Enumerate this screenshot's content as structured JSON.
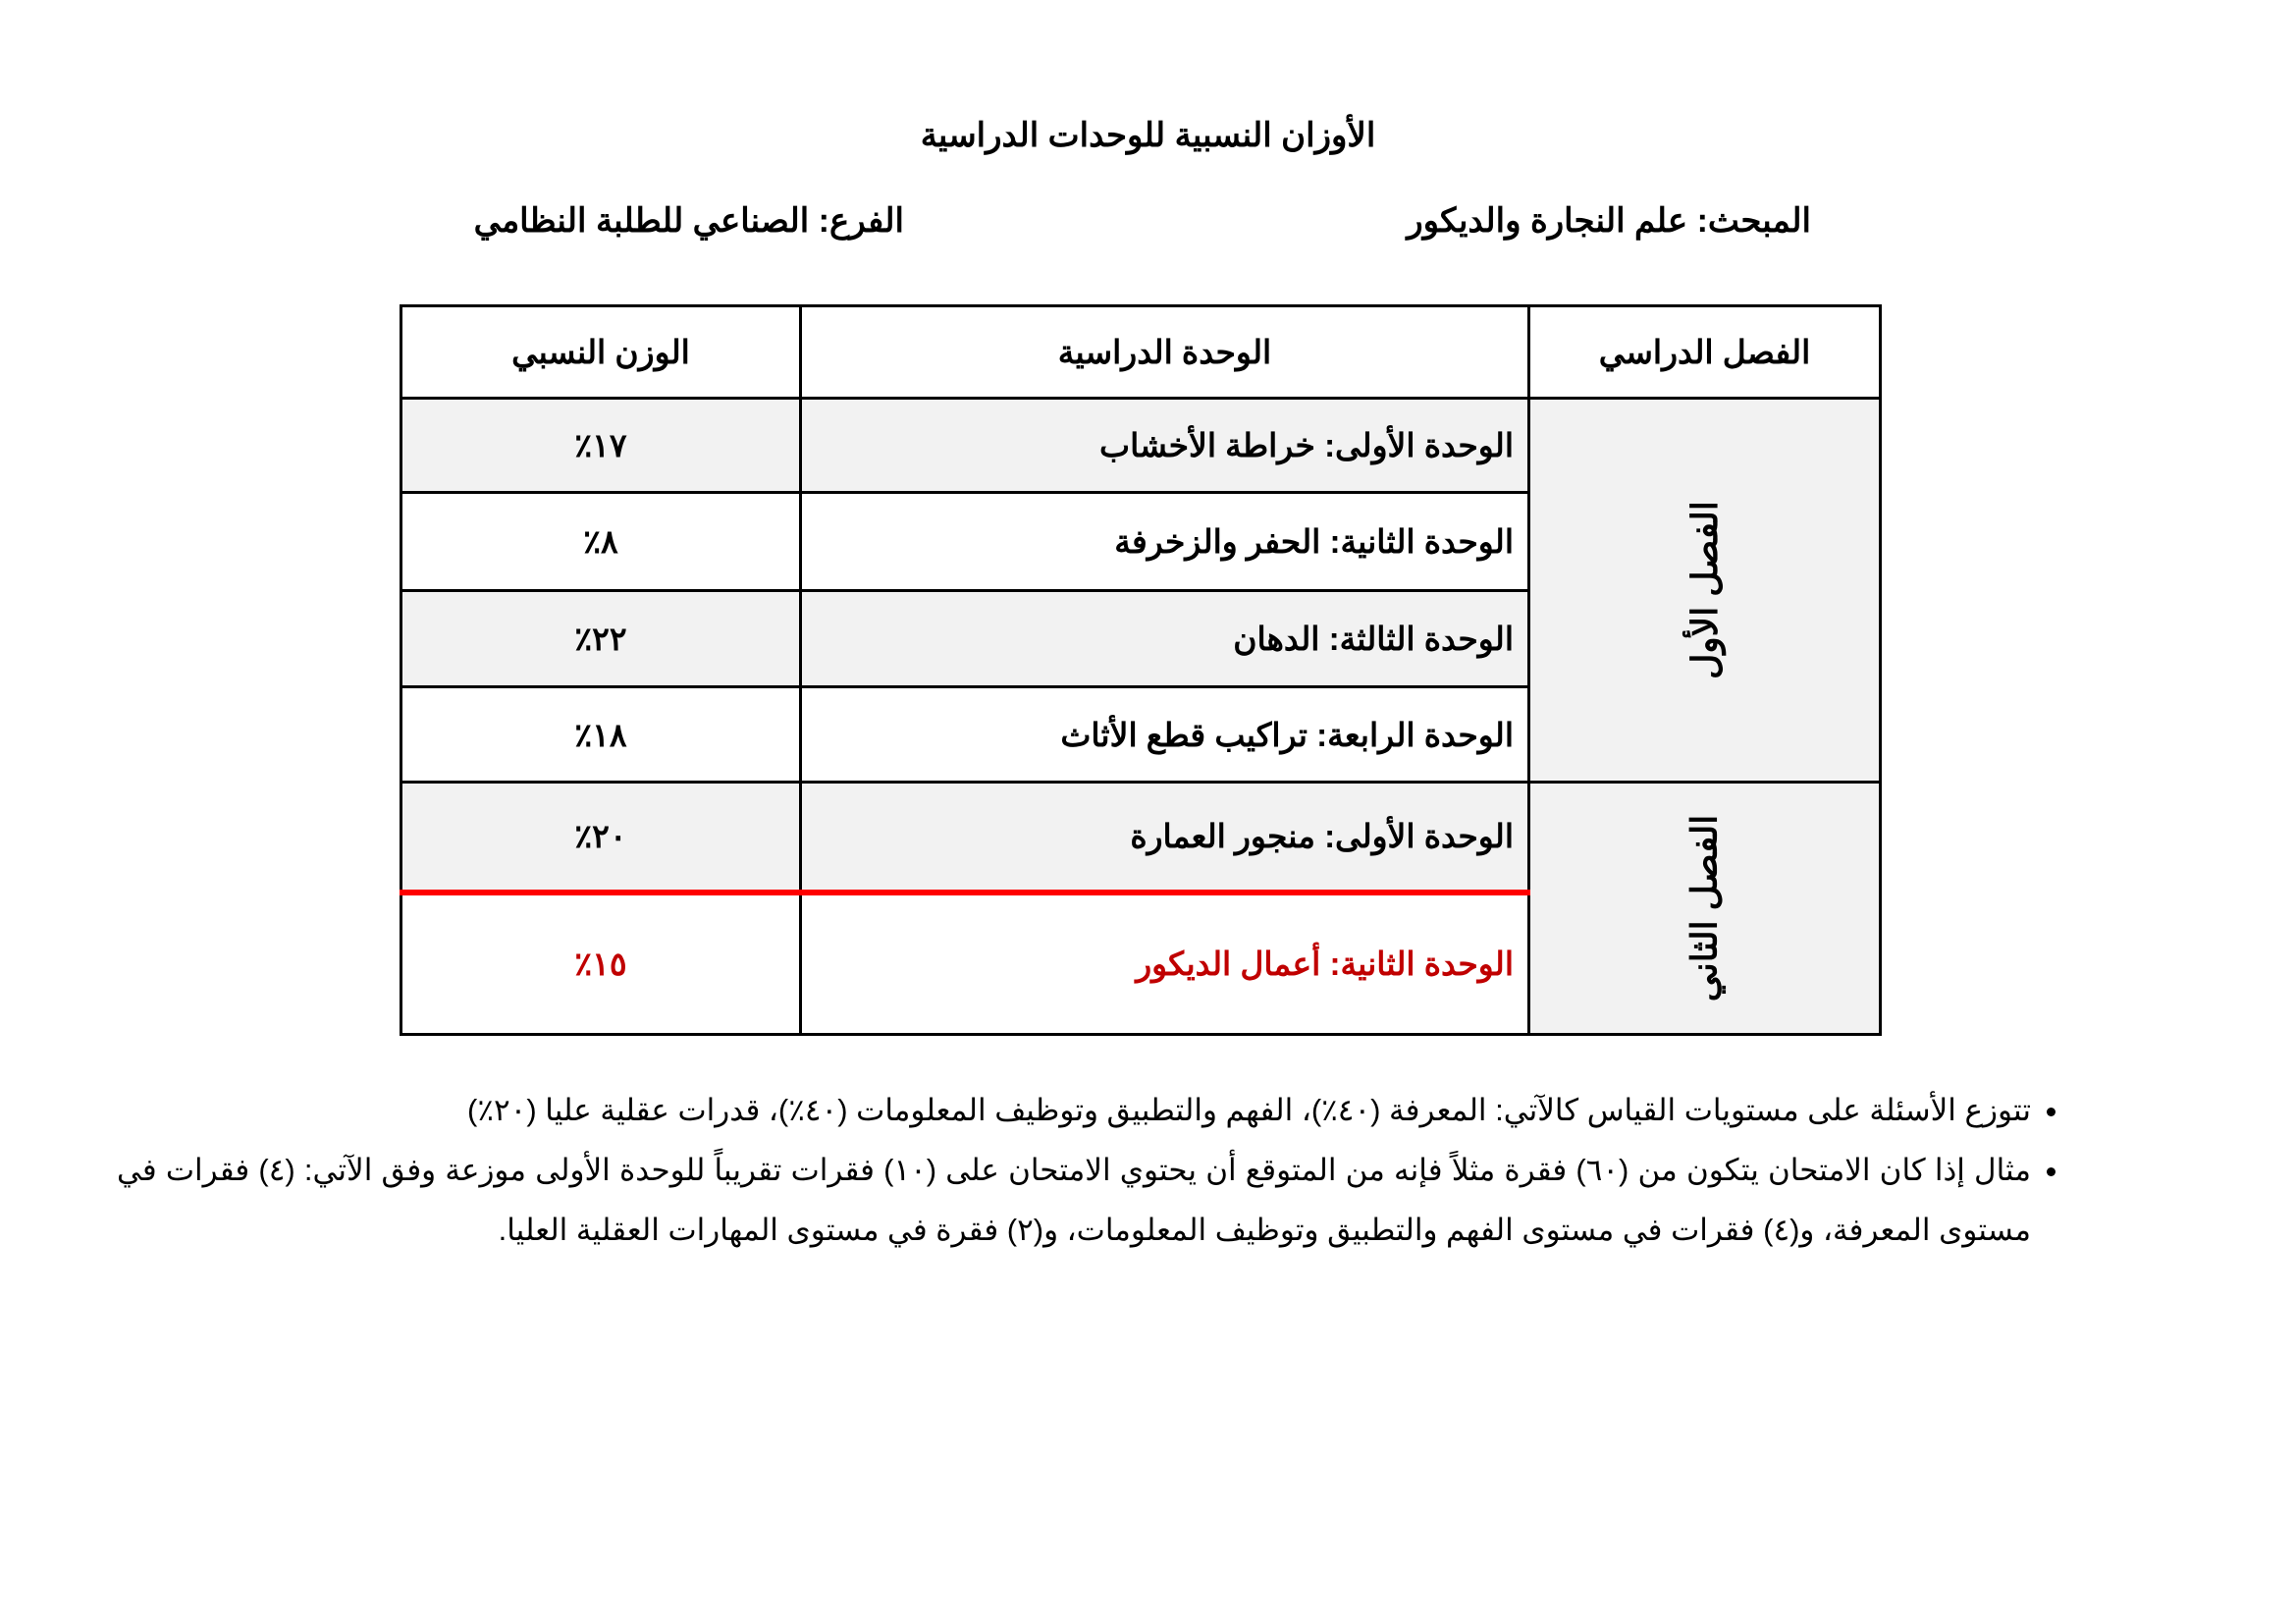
{
  "title": "الأوزان النسبية للوحدات الدراسية",
  "subject": "المبحث: علم النجارة والديكور",
  "branch": "الفرع: الصناعي للطلبة النظامي",
  "table": {
    "headers": [
      "الفصل الدراسي",
      "الوحدة الدراسية",
      "الوزن النسبي"
    ],
    "semesters": [
      "الفصل الأول",
      "الفصل الثاني"
    ],
    "rows": [
      {
        "unit": "الوحدة الأولى: خراطة الأخشاب",
        "weight": "١٧٪"
      },
      {
        "unit": "الوحدة الثانية: الحفر والزخرفة",
        "weight": "٨٪"
      },
      {
        "unit": "الوحدة الثالثة: الدهان",
        "weight": "٢٢٪"
      },
      {
        "unit": "الوحدة الرابعة: تراكيب قطع الأثاث",
        "weight": "١٨٪"
      },
      {
        "unit": "الوحدة الأولى: منجور العمارة",
        "weight": "٢٠٪"
      },
      {
        "unit": "الوحدة الثانية: أعمال الديكور",
        "weight": "١٥٪"
      }
    ],
    "highlight_color": "#c00000",
    "line_color": "#ff0000"
  },
  "notes": [
    "تتوزع الأسئلة على مستويات القياس كالآتي: المعرفة (٤٠٪)، الفهم والتطبيق وتوظيف المعلومات (٤٠٪)، قدرات عقلية عليا (٢٠٪)",
    "مثال إذا كان الامتحان يتكون من (٦٠) فقرة مثلاً فإنه من المتوقع أن يحتوي الامتحان على (١٠) فقرات تقريباً للوحدة الأولى موزعة وفق الآتي: (٤) فقرات في مستوى المعرفة، و(٤) فقرات في مستوى الفهم والتطبيق وتوظيف المعلومات، و(٢) فقرة في مستوى المهارات العقلية العليا."
  ]
}
